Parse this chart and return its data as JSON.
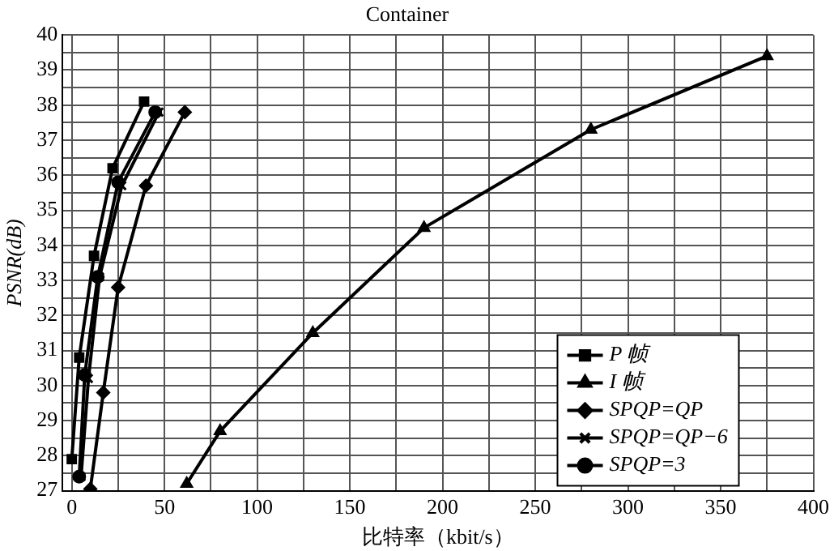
{
  "chart_data": {
    "type": "line",
    "title": "Container",
    "xlabel": "比特率（kbit/s）",
    "ylabel": "PSNR(dB)",
    "xlim": [
      -5,
      400
    ],
    "xticks": [
      0,
      {
        "value": 25,
        "label": null
      },
      50,
      {
        "value": 75,
        "label": null
      },
      100,
      {
        "value": 125,
        "label": null
      },
      150,
      {
        "value": 175,
        "label": null
      },
      200,
      {
        "value": 225,
        "label": null
      },
      250,
      {
        "value": 275,
        "label": null
      },
      300,
      {
        "value": 325,
        "label": null
      },
      350,
      {
        "value": 375,
        "label": null
      },
      400
    ],
    "ylim": [
      27,
      40
    ],
    "yticks": [
      27,
      {
        "value": 27.5,
        "label": null
      },
      28,
      {
        "value": 28.5,
        "label": null
      },
      29,
      {
        "value": 29.5,
        "label": null
      },
      30,
      {
        "value": 30.5,
        "label": null
      },
      31,
      {
        "value": 31.5,
        "label": null
      },
      32,
      {
        "value": 32.5,
        "label": null
      },
      33,
      {
        "value": 33.5,
        "label": null
      },
      34,
      {
        "value": 34.5,
        "label": null
      },
      35,
      {
        "value": 35.5,
        "label": null
      },
      36,
      {
        "value": 36.5,
        "label": null
      },
      37,
      {
        "value": 37.5,
        "label": null
      },
      38,
      {
        "value": 38.5,
        "label": null
      },
      39,
      {
        "value": 39.5,
        "label": null
      },
      40
    ],
    "grid": true,
    "legend": "bottom right",
    "line_style": "solid",
    "series": [
      {
        "name": "P 帧",
        "color": "#000000",
        "marker": "square",
        "x": [
          0,
          4,
          12,
          22,
          39
        ],
        "values": [
          27.9,
          30.8,
          33.7,
          36.2,
          38.1
        ]
      },
      {
        "name": "I 帧",
        "color": "#000000",
        "marker": "triangle",
        "x": [
          62,
          80,
          130,
          190,
          280,
          375
        ],
        "values": [
          27.2,
          28.7,
          31.5,
          34.5,
          37.3,
          39.4
        ]
      },
      {
        "name": "SPQP=QP",
        "color": "#000000",
        "marker": "diamond",
        "x": [
          10,
          17,
          25,
          40,
          61
        ],
        "values": [
          27.05,
          29.8,
          32.8,
          35.7,
          37.8
        ]
      },
      {
        "name": "SPQP=QP−6",
        "color": "#000000",
        "marker": "cross",
        "x": [
          5,
          9,
          15,
          27,
          47
        ],
        "values": [
          27.4,
          30.2,
          33.1,
          35.7,
          37.8
        ]
      },
      {
        "name": "SPQP=3",
        "color": "#000000",
        "marker": "circle",
        "x": [
          4,
          7,
          14,
          25,
          45
        ],
        "values": [
          27.4,
          30.3,
          33.1,
          35.8,
          37.8
        ]
      }
    ]
  }
}
